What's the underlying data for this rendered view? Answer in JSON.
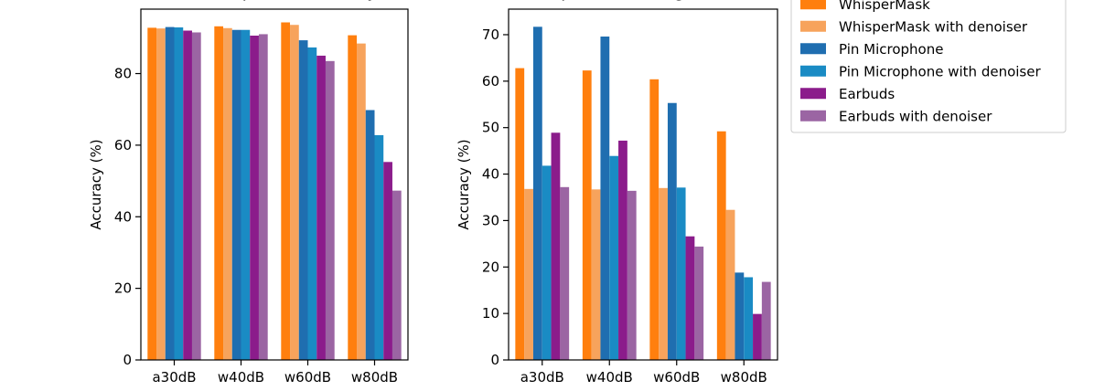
{
  "chart_data": [
    {
      "type": "bar",
      "title": "Transcription Accuracy",
      "xlabel": "",
      "ylabel": "Accuracy (%)",
      "ylim": [
        0,
        98
      ],
      "yticks": [
        0,
        20,
        40,
        60,
        80
      ],
      "categories": [
        "a30dB",
        "w40dB",
        "w60dB",
        "w80dB"
      ],
      "series": [
        {
          "name": "WhisperMask",
          "color": "#ff7f0e",
          "values": [
            92.8,
            93.2,
            94.3,
            90.7
          ]
        },
        {
          "name": "WhisperMask with denoiser",
          "color": "#f7a35c",
          "values": [
            92.6,
            92.7,
            93.6,
            88.4
          ]
        },
        {
          "name": "Pin Microphone",
          "color": "#1f6eb0",
          "values": [
            93.0,
            92.2,
            89.3,
            69.8
          ]
        },
        {
          "name": "Pin Microphone with denoiser",
          "color": "#1a8bc4",
          "values": [
            92.9,
            92.2,
            87.3,
            62.8
          ]
        },
        {
          "name": "Earbuds",
          "color": "#8b1c8b",
          "values": [
            92.0,
            90.6,
            85.0,
            55.3
          ]
        },
        {
          "name": "Earbuds with denoiser",
          "color": "#9b65a3",
          "values": [
            91.5,
            91.0,
            83.5,
            47.3
          ]
        }
      ]
    },
    {
      "type": "bar",
      "title": "Speaker Recognition",
      "xlabel": "",
      "ylabel": "Accuracy (%)",
      "ylim": [
        0,
        75.5
      ],
      "yticks": [
        0,
        10,
        20,
        30,
        40,
        50,
        60,
        70
      ],
      "categories": [
        "a30dB",
        "w40dB",
        "w60dB",
        "w80dB"
      ],
      "series": [
        {
          "name": "WhisperMask",
          "color": "#ff7f0e",
          "values": [
            62.8,
            62.3,
            60.4,
            49.2
          ]
        },
        {
          "name": "WhisperMask with denoiser",
          "color": "#f7a35c",
          "values": [
            36.8,
            36.7,
            37.0,
            32.3
          ]
        },
        {
          "name": "Pin Microphone",
          "color": "#1f6eb0",
          "values": [
            71.7,
            69.6,
            55.3,
            18.8
          ]
        },
        {
          "name": "Pin Microphone with denoiser",
          "color": "#1a8bc4",
          "values": [
            41.8,
            43.9,
            37.1,
            17.8
          ]
        },
        {
          "name": "Earbuds",
          "color": "#8b1c8b",
          "values": [
            48.9,
            47.2,
            26.6,
            9.9
          ]
        },
        {
          "name": "Earbuds with denoiser",
          "color": "#9b65a3",
          "values": [
            37.2,
            36.4,
            24.4,
            16.8
          ]
        }
      ]
    }
  ],
  "legend": {
    "position": "top-right",
    "items": [
      {
        "label": "WhisperMask",
        "color": "#ff7f0e"
      },
      {
        "label": "WhisperMask with denoiser",
        "color": "#f7a35c"
      },
      {
        "label": "Pin Microphone",
        "color": "#1f6eb0"
      },
      {
        "label": "Pin Microphone with denoiser",
        "color": "#1a8bc4"
      },
      {
        "label": "Earbuds",
        "color": "#8b1c8b"
      },
      {
        "label": "Earbuds with denoiser",
        "color": "#9b65a3"
      }
    ]
  }
}
